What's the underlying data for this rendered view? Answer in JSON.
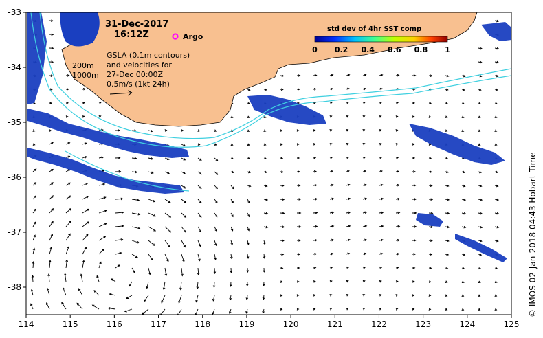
{
  "map": {
    "date": "31-Dec-2017",
    "time": "16:12Z",
    "legend_marker_label": "Argo",
    "gsla_note": [
      "GSLA (0.1m contours)",
      "and velocities for",
      "27-Dec 00:00Z",
      "0.5m/s (1kt 24h)"
    ],
    "isobath_labels": [
      "200m",
      "1000m"
    ],
    "credit": "©  IMOS 02-Jan-2018 04:43 Hobart Time",
    "x_axis": {
      "ticks": [
        "114",
        "115",
        "116",
        "117",
        "118",
        "119",
        "120",
        "121",
        "122",
        "123",
        "124",
        "125"
      ],
      "range": [
        114,
        125
      ],
      "units": "degrees E"
    },
    "y_axis": {
      "ticks": [
        "-33",
        "-34",
        "-35",
        "-36",
        "-37",
        "-38"
      ],
      "range": [
        -38.5,
        -33
      ],
      "units": "degrees S"
    },
    "colorbar": {
      "title": "std dev of 4hr SST comp",
      "tick_labels": [
        "0",
        "0.2",
        "0.4",
        "0.6",
        "0.8",
        "1"
      ],
      "range": [
        0,
        1
      ],
      "colors": [
        "#000090",
        "#0030ff",
        "#00c0ff",
        "#40ff90",
        "#c0ff00",
        "#ffd000",
        "#ff4000",
        "#900000"
      ]
    },
    "colors": {
      "land": "#f8c090",
      "isobath": "#40d0e0",
      "sst_patch": "#1a3fc0",
      "argo": "#ff00ff",
      "vector": "#000000"
    },
    "argo_float": {
      "lon": 117.3,
      "lat": -33.7
    }
  }
}
